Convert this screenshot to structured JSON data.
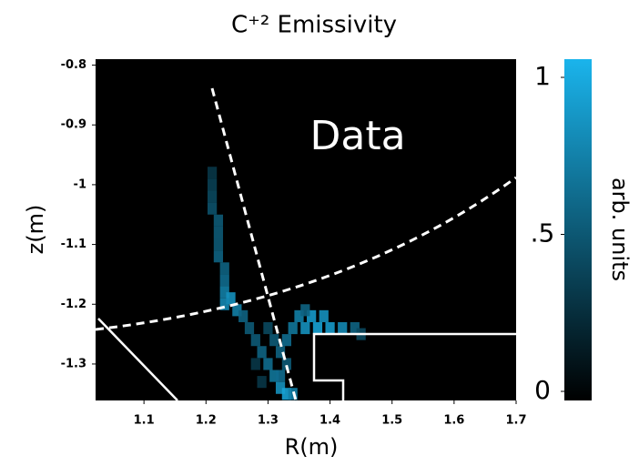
{
  "chart_data": {
    "type": "heatmap",
    "title": "C⁺² Emissivity",
    "xlabel": "R(m)",
    "ylabel": "z(m)",
    "annotation": "Data",
    "xlim": [
      1.022,
      1.7
    ],
    "ylim": [
      -1.361,
      -0.79
    ],
    "xticks": [
      1.1,
      1.2,
      1.3,
      1.4,
      1.5,
      1.6,
      1.7
    ],
    "yticks": [
      -0.8,
      -0.9,
      -1.0,
      -1.1,
      -1.2,
      -1.3
    ],
    "r": [
      1.21,
      1.21,
      1.21,
      1.21,
      1.22,
      1.22,
      1.22,
      1.22,
      1.23,
      1.23,
      1.23,
      1.24,
      1.23,
      1.25,
      1.26,
      1.27,
      1.28,
      1.29,
      1.3,
      1.31,
      1.32,
      1.33,
      1.34,
      1.3,
      1.31,
      1.32,
      1.33,
      1.34,
      1.35,
      1.36,
      1.37,
      1.38,
      1.39,
      1.4,
      1.42,
      1.44,
      1.45,
      1.36,
      1.33,
      1.32,
      1.28,
      1.29
    ],
    "z": [
      -0.98,
      -1.0,
      -1.02,
      -1.04,
      -1.06,
      -1.08,
      -1.1,
      -1.12,
      -1.14,
      -1.16,
      -1.18,
      -1.19,
      -1.2,
      -1.21,
      -1.22,
      -1.24,
      -1.26,
      -1.28,
      -1.3,
      -1.32,
      -1.34,
      -1.35,
      -1.35,
      -1.24,
      -1.26,
      -1.28,
      -1.26,
      -1.24,
      -1.22,
      -1.24,
      -1.22,
      -1.24,
      -1.22,
      -1.24,
      -1.24,
      -1.24,
      -1.25,
      -1.21,
      -1.3,
      -1.32,
      -1.3,
      -1.33
    ],
    "values": [
      0.3,
      0.35,
      0.4,
      0.45,
      0.5,
      0.5,
      0.5,
      0.55,
      0.55,
      0.6,
      0.7,
      0.8,
      0.75,
      0.7,
      0.55,
      0.5,
      0.5,
      0.55,
      0.6,
      0.65,
      0.8,
      0.9,
      0.7,
      0.4,
      0.5,
      0.55,
      0.6,
      0.65,
      0.7,
      0.8,
      0.85,
      0.9,
      0.8,
      0.85,
      0.75,
      0.55,
      0.4,
      0.55,
      0.5,
      0.6,
      0.3,
      0.3
    ],
    "colormap": [
      "#000000",
      "#1ab4ec"
    ],
    "colorbar_label": "arb. units",
    "clim": [
      0,
      1
    ],
    "cticks": [
      1,
      {
        "value": 0.5,
        "label": ".5"
      },
      0
    ]
  }
}
